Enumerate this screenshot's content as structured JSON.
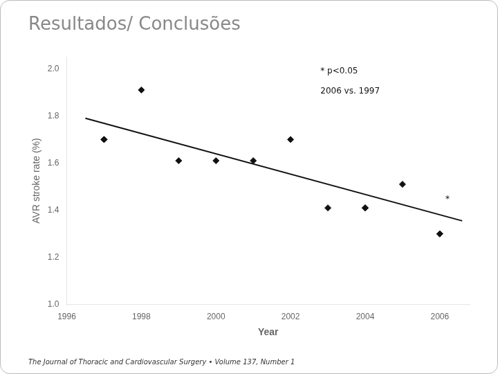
{
  "chart_data": {
    "type": "scatter",
    "title": "Resultados/ Conclusões",
    "x_label": "Year",
    "y_label": "AVR stroke rate (%)",
    "xlim": [
      1996,
      2006.8
    ],
    "ylim": [
      1.0,
      2.05
    ],
    "xticks": [
      1996,
      1998,
      2000,
      2002,
      2004,
      2006
    ],
    "yticks": [
      {
        "value": 1.0,
        "label": "1.0"
      },
      {
        "value": 1.2,
        "label": "1.2"
      },
      {
        "value": 1.4,
        "label": "1.4"
      },
      {
        "value": 1.6,
        "label": "1.6"
      },
      {
        "value": 1.8,
        "label": "1.8"
      },
      {
        "value": 2.0,
        "label": "2.0"
      }
    ],
    "grid": false,
    "series": [
      {
        "type": "scatter",
        "marker": "diamond",
        "color": "#111111",
        "x": [
          1997,
          1997,
          1998,
          1999,
          2000,
          2001,
          2002,
          2003,
          2004,
          2004,
          2005,
          2006,
          2006
        ],
        "values": [
          1.7,
          1.7,
          1.91,
          1.61,
          1.61,
          1.61,
          1.7,
          1.41,
          1.41,
          1.41,
          1.51,
          1.3,
          1.3
        ]
      },
      {
        "type": "line",
        "line_style": "solid",
        "color": "#111111",
        "x": [
          1996.5,
          2006.6
        ],
        "values": [
          1.79,
          1.355
        ]
      }
    ],
    "annotations": [
      {
        "text": "*",
        "x": 2006.15,
        "y": 1.445
      },
      {
        "text": "* p<0.05",
        "x": 2002.8,
        "y": 1.99
      },
      {
        "text": "2006 vs. 1997",
        "x": 2002.8,
        "y": 1.905
      }
    ],
    "footnote": "The Journal of Thoracic and Cardiovascular Surgery • Volume 137, Number 1"
  }
}
